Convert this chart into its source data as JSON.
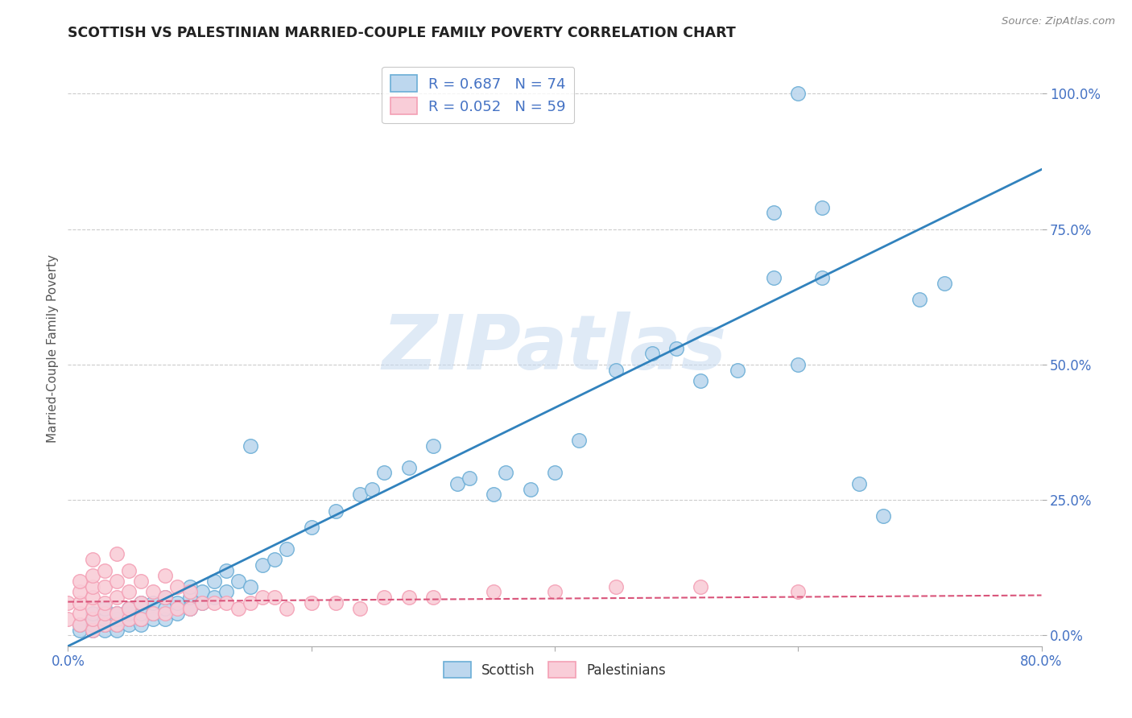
{
  "title": "SCOTTISH VS PALESTINIAN MARRIED-COUPLE FAMILY POVERTY CORRELATION CHART",
  "source": "Source: ZipAtlas.com",
  "ylabel": "Married-Couple Family Poverty",
  "ytick_labels": [
    "0.0%",
    "25.0%",
    "50.0%",
    "75.0%",
    "100.0%"
  ],
  "ytick_values": [
    0.0,
    0.25,
    0.5,
    0.75,
    1.0
  ],
  "xlim": [
    0.0,
    0.8
  ],
  "ylim": [
    -0.02,
    1.08
  ],
  "legend_r_scottish": "R = 0.687",
  "legend_n_scottish": "N = 74",
  "legend_r_palestinian": "R = 0.052",
  "legend_n_palestinian": "N = 59",
  "scottish_color": "#6baed6",
  "scottish_fill": "#bdd7ee",
  "scottish_line_color": "#3182bd",
  "palestinian_color": "#f4a0b5",
  "palestinian_fill": "#f9cdd8",
  "palestinian_line_color": "#d9547a",
  "watermark_color": "#c5d9f0",
  "background_color": "#ffffff",
  "grid_color": "#cccccc",
  "blue_text_color": "#4472c4",
  "scottish_x": [
    0.01,
    0.01,
    0.02,
    0.02,
    0.02,
    0.02,
    0.03,
    0.03,
    0.03,
    0.03,
    0.04,
    0.04,
    0.04,
    0.04,
    0.05,
    0.05,
    0.05,
    0.05,
    0.06,
    0.06,
    0.06,
    0.06,
    0.07,
    0.07,
    0.07,
    0.08,
    0.08,
    0.08,
    0.09,
    0.09,
    0.1,
    0.1,
    0.1,
    0.11,
    0.11,
    0.12,
    0.12,
    0.13,
    0.13,
    0.14,
    0.15,
    0.15,
    0.16,
    0.17,
    0.18,
    0.2,
    0.22,
    0.24,
    0.25,
    0.26,
    0.28,
    0.3,
    0.32,
    0.33,
    0.35,
    0.36,
    0.38,
    0.4,
    0.42,
    0.45,
    0.48,
    0.5,
    0.52,
    0.55,
    0.58,
    0.6,
    0.62,
    0.65,
    0.67,
    0.7,
    0.72,
    0.62,
    0.6,
    0.58
  ],
  "scottish_y": [
    0.01,
    0.02,
    0.01,
    0.02,
    0.03,
    0.04,
    0.01,
    0.02,
    0.03,
    0.05,
    0.01,
    0.02,
    0.03,
    0.04,
    0.02,
    0.03,
    0.04,
    0.05,
    0.02,
    0.03,
    0.04,
    0.06,
    0.03,
    0.04,
    0.06,
    0.03,
    0.05,
    0.07,
    0.04,
    0.06,
    0.05,
    0.07,
    0.09,
    0.06,
    0.08,
    0.07,
    0.1,
    0.08,
    0.12,
    0.1,
    0.09,
    0.35,
    0.13,
    0.14,
    0.16,
    0.2,
    0.23,
    0.26,
    0.27,
    0.3,
    0.31,
    0.35,
    0.28,
    0.29,
    0.26,
    0.3,
    0.27,
    0.3,
    0.36,
    0.49,
    0.52,
    0.53,
    0.47,
    0.49,
    0.78,
    0.5,
    0.79,
    0.28,
    0.22,
    0.62,
    0.65,
    0.66,
    1.0,
    0.66
  ],
  "palestinian_x": [
    0.0,
    0.0,
    0.01,
    0.01,
    0.01,
    0.01,
    0.01,
    0.02,
    0.02,
    0.02,
    0.02,
    0.02,
    0.02,
    0.02,
    0.03,
    0.03,
    0.03,
    0.03,
    0.03,
    0.04,
    0.04,
    0.04,
    0.04,
    0.04,
    0.05,
    0.05,
    0.05,
    0.05,
    0.06,
    0.06,
    0.06,
    0.07,
    0.07,
    0.08,
    0.08,
    0.08,
    0.09,
    0.09,
    0.1,
    0.1,
    0.11,
    0.12,
    0.13,
    0.14,
    0.15,
    0.16,
    0.17,
    0.18,
    0.2,
    0.22,
    0.24,
    0.26,
    0.28,
    0.3,
    0.35,
    0.4,
    0.45,
    0.52,
    0.6
  ],
  "palestinian_y": [
    0.03,
    0.06,
    0.02,
    0.04,
    0.06,
    0.08,
    0.1,
    0.01,
    0.03,
    0.05,
    0.07,
    0.09,
    0.11,
    0.14,
    0.02,
    0.04,
    0.06,
    0.09,
    0.12,
    0.02,
    0.04,
    0.07,
    0.1,
    0.15,
    0.03,
    0.05,
    0.08,
    0.12,
    0.03,
    0.06,
    0.1,
    0.04,
    0.08,
    0.04,
    0.07,
    0.11,
    0.05,
    0.09,
    0.05,
    0.08,
    0.06,
    0.06,
    0.06,
    0.05,
    0.06,
    0.07,
    0.07,
    0.05,
    0.06,
    0.06,
    0.05,
    0.07,
    0.07,
    0.07,
    0.08,
    0.08,
    0.09,
    0.09,
    0.08
  ]
}
